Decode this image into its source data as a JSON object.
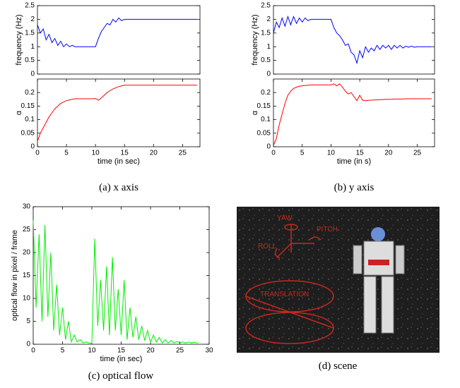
{
  "chart_data": [
    {
      "type": "line",
      "ylabel": "frequency (Hz)",
      "xlim": [
        0,
        28
      ],
      "ylim": [
        0,
        2.5
      ],
      "yticks": [
        0,
        0.5,
        1,
        1.5,
        2,
        2.5
      ],
      "color": "#0000ff",
      "x": [
        0,
        0.5,
        1,
        1.5,
        2,
        2.5,
        3,
        3.5,
        4,
        4.5,
        5,
        5.5,
        6,
        6.5,
        7,
        7.5,
        8,
        8.5,
        9,
        9.5,
        10,
        10.5,
        11,
        11.5,
        12,
        12.5,
        13,
        13.5,
        14,
        14.5,
        15,
        15.5,
        16,
        16.5,
        17,
        17.5,
        18,
        18.5,
        19,
        19.5,
        20,
        20.5,
        21,
        21.5,
        22,
        22.5,
        23,
        23.5,
        24,
        24.5,
        25,
        25.5,
        26,
        26.5,
        27,
        27.5
      ],
      "values": [
        1.8,
        1.5,
        1.65,
        1.25,
        1.45,
        1.15,
        1.3,
        1.05,
        1.2,
        1.0,
        1.1,
        1.0,
        1.05,
        1.0,
        1.0,
        1.0,
        1.0,
        1.0,
        1.0,
        1.0,
        1.0,
        1.3,
        1.55,
        1.7,
        1.85,
        1.8,
        2.0,
        1.9,
        2.05,
        1.95,
        2.0,
        2.0,
        2.0,
        2.0,
        2.0,
        2.0,
        2.0,
        2.0,
        2.0,
        2.0,
        2.0,
        2.0,
        2.0,
        2.0,
        2.0,
        2.0,
        2.0,
        2.0,
        2.0,
        2.0,
        2.0,
        2.0,
        2.0,
        2.0,
        2.0,
        2.0
      ]
    },
    {
      "type": "line",
      "ylabel": "α",
      "xlabel": "time (in sec)",
      "xlim": [
        0,
        28
      ],
      "ylim": [
        0,
        0.25
      ],
      "yticks": [
        0,
        0.05,
        0.1,
        0.15,
        0.2
      ],
      "xticks": [
        0,
        5,
        10,
        15,
        20,
        25
      ],
      "color": "#ff0000",
      "x": [
        0,
        0.5,
        1,
        1.5,
        2,
        2.5,
        3,
        3.5,
        4,
        4.5,
        5,
        5.5,
        6,
        6.5,
        7,
        7.5,
        8,
        8.5,
        9,
        9.5,
        10,
        10.5,
        11,
        11.5,
        12,
        12.5,
        13,
        13.5,
        14,
        14.5,
        15,
        15.5,
        16,
        16.5,
        17,
        17.5,
        18,
        18.5,
        19,
        19.5,
        20,
        20.5,
        21,
        21.5,
        22,
        22.5,
        23,
        23.5,
        24,
        24.5,
        25,
        25.5,
        26,
        26.5,
        27,
        27.5
      ],
      "values": [
        0.02,
        0.05,
        0.07,
        0.09,
        0.11,
        0.125,
        0.14,
        0.15,
        0.16,
        0.165,
        0.17,
        0.173,
        0.175,
        0.177,
        0.177,
        0.177,
        0.177,
        0.177,
        0.177,
        0.177,
        0.178,
        0.172,
        0.18,
        0.19,
        0.2,
        0.207,
        0.213,
        0.218,
        0.222,
        0.225,
        0.227,
        0.227,
        0.227,
        0.227,
        0.227,
        0.227,
        0.227,
        0.227,
        0.227,
        0.227,
        0.227,
        0.227,
        0.227,
        0.227,
        0.227,
        0.227,
        0.227,
        0.227,
        0.227,
        0.227,
        0.227,
        0.227,
        0.227,
        0.227,
        0.227,
        0.227
      ]
    },
    {
      "type": "line",
      "ylabel": "frequency (Hz)",
      "xlim": [
        0,
        28
      ],
      "ylim": [
        0,
        2.5
      ],
      "yticks": [
        0,
        0.5,
        1,
        1.5,
        2,
        2.5
      ],
      "color": "#0000ff",
      "x": [
        0,
        0.5,
        1,
        1.5,
        2,
        2.5,
        3,
        3.5,
        4,
        4.5,
        5,
        5.5,
        6,
        6.5,
        7,
        7.5,
        8,
        8.5,
        9,
        9.5,
        10,
        10.5,
        11,
        11.5,
        12,
        12.5,
        13,
        13.5,
        14,
        14.5,
        15,
        15.5,
        16,
        16.5,
        17,
        17.5,
        18,
        18.5,
        19,
        19.5,
        20,
        20.5,
        21,
        21.5,
        22,
        22.5,
        23,
        23.5,
        24,
        24.5,
        25,
        25.5,
        26,
        26.5,
        27,
        27.5
      ],
      "values": [
        1.5,
        1.9,
        1.7,
        2.05,
        1.75,
        2.1,
        1.8,
        2.1,
        1.85,
        2.05,
        1.9,
        2.05,
        1.95,
        2.0,
        2.0,
        2.0,
        2.0,
        2.0,
        2.0,
        2.0,
        2.0,
        1.7,
        1.5,
        1.4,
        1.25,
        1.05,
        1.1,
        0.8,
        0.7,
        0.4,
        0.85,
        0.6,
        1.0,
        0.8,
        0.95,
        0.85,
        1.05,
        0.9,
        1.05,
        0.95,
        1.05,
        0.9,
        1.05,
        0.95,
        1.05,
        0.95,
        1.02,
        0.98,
        1.02,
        0.98,
        1.0,
        1.0,
        1.0,
        1.0,
        1.0,
        1.0
      ]
    },
    {
      "type": "line",
      "ylabel": "α",
      "xlabel": "time (in s)",
      "xlim": [
        0,
        28
      ],
      "ylim": [
        0,
        0.25
      ],
      "yticks": [
        0,
        0.05,
        0.1,
        0.15,
        0.2
      ],
      "xticks": [
        0,
        5,
        10,
        15,
        20,
        25
      ],
      "color": "#ff0000",
      "x": [
        0,
        0.5,
        1,
        1.5,
        2,
        2.5,
        3,
        3.5,
        4,
        4.5,
        5,
        5.5,
        6,
        6.5,
        7,
        7.5,
        8,
        8.5,
        9,
        9.5,
        10,
        10.5,
        11,
        11.5,
        12,
        12.5,
        13,
        13.5,
        14,
        14.5,
        15,
        15.5,
        16,
        16.5,
        17,
        17.5,
        18,
        18.5,
        19,
        19.5,
        20,
        20.5,
        21,
        21.5,
        22,
        22.5,
        23,
        23.5,
        24,
        24.5,
        25,
        25.5,
        26,
        26.5,
        27,
        27.5
      ],
      "values": [
        0.005,
        0.03,
        0.08,
        0.12,
        0.16,
        0.19,
        0.205,
        0.215,
        0.22,
        0.223,
        0.225,
        0.226,
        0.227,
        0.228,
        0.228,
        0.228,
        0.228,
        0.228,
        0.228,
        0.228,
        0.228,
        0.232,
        0.225,
        0.232,
        0.22,
        0.205,
        0.195,
        0.2,
        0.185,
        0.17,
        0.19,
        0.172,
        0.17,
        0.171,
        0.172,
        0.173,
        0.173,
        0.174,
        0.174,
        0.175,
        0.175,
        0.175,
        0.176,
        0.176,
        0.176,
        0.176,
        0.177,
        0.177,
        0.177,
        0.177,
        0.177,
        0.177,
        0.177,
        0.177,
        0.177,
        0.177
      ]
    },
    {
      "type": "line",
      "ylabel": "optical flow in pixel / frame",
      "xlabel": "time (in sec)",
      "xlim": [
        0,
        30
      ],
      "ylim": [
        0,
        30
      ],
      "yticks": [
        0,
        5,
        10,
        15,
        20,
        25,
        30
      ],
      "xticks": [
        0,
        5,
        10,
        15,
        20,
        25,
        30
      ],
      "color": "#00ee00",
      "x": [
        0,
        0.5,
        1,
        1.5,
        2,
        2.5,
        3,
        3.5,
        4,
        4.5,
        5,
        5.5,
        6,
        6.5,
        7,
        7.5,
        8,
        8.5,
        9,
        9.5,
        10,
        10.5,
        11,
        11.5,
        12,
        12.5,
        13,
        13.5,
        14,
        14.5,
        15,
        15.5,
        16,
        16.5,
        17,
        17.5,
        18,
        18.5,
        19,
        19.5,
        20,
        20.5,
        21,
        21.5,
        22,
        22.5,
        23,
        23.5,
        24,
        24.5,
        25,
        25.5,
        26,
        26.5,
        27,
        27.5,
        28
      ],
      "values": [
        27,
        8,
        24,
        5,
        26,
        6,
        20,
        3,
        13,
        2,
        8,
        1,
        5,
        0.5,
        2,
        0.5,
        1,
        0.3,
        0.5,
        0.3,
        0.2,
        23,
        4,
        14,
        3,
        17,
        2,
        19,
        3,
        12,
        2,
        14,
        1,
        8,
        1.5,
        6,
        1,
        4,
        0.8,
        3,
        0.5,
        2,
        0.5,
        1.5,
        0.3,
        1,
        0.3,
        0.8,
        0.3,
        0.6,
        0.3,
        0.5,
        0.3,
        0.5,
        0.3,
        0.4,
        0.3
      ]
    }
  ],
  "captions": [
    "(a) x axis",
    "(b) y axis",
    "(c) optical flow",
    "(d) scene"
  ],
  "scene": {
    "labels": [
      "YAW",
      "PITCH",
      "ROLL",
      "TRANSLATION"
    ]
  }
}
